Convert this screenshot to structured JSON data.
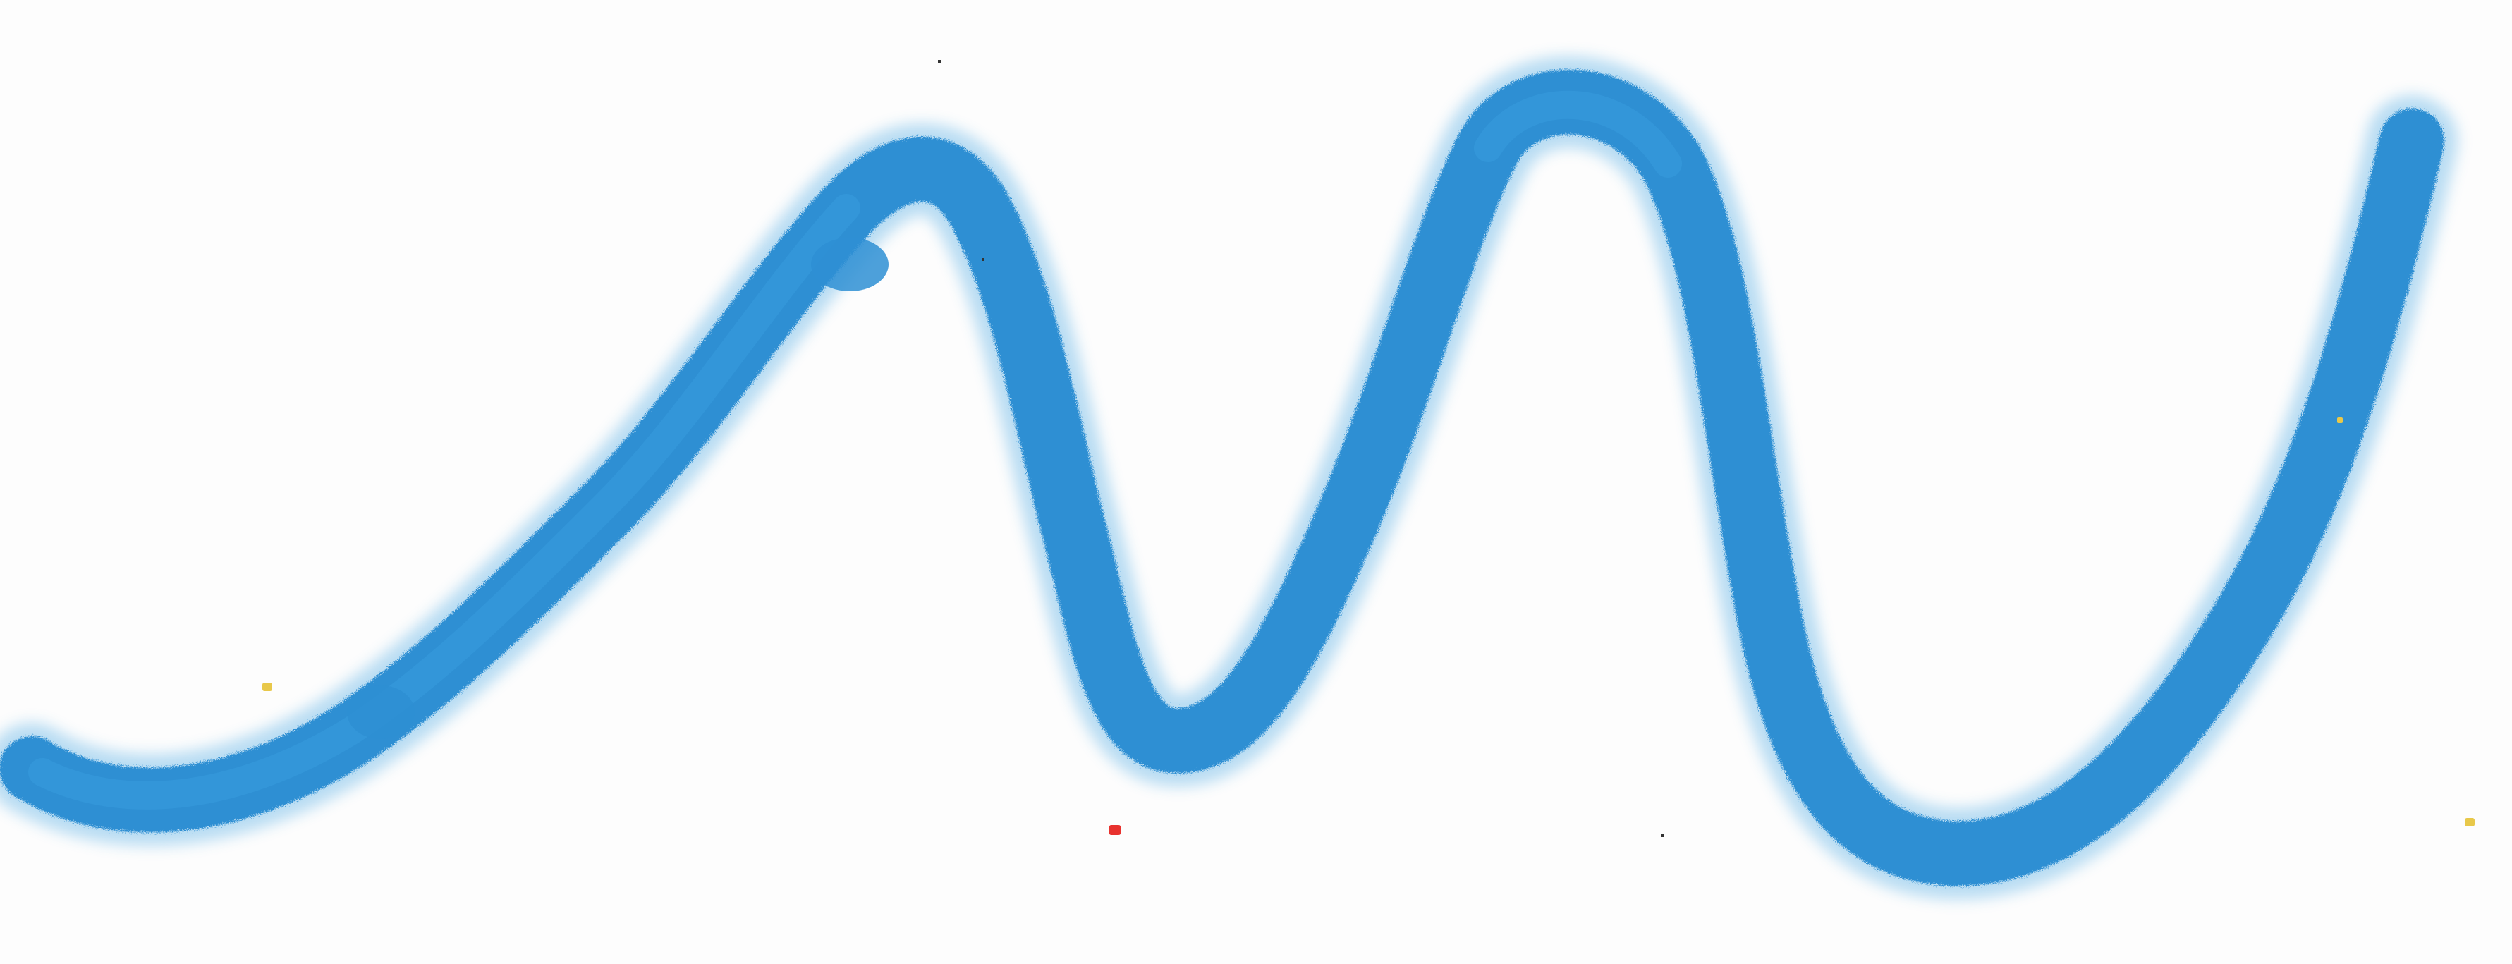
{
  "scene": {
    "background_color": "#fdfdfd",
    "stroke_color": "#2e8fd3",
    "stroke_highlight_color": "#3aa0e0",
    "speck_colors": {
      "yellow": "#e8c84a",
      "red": "#e8322e",
      "dark": "#333333"
    }
  }
}
